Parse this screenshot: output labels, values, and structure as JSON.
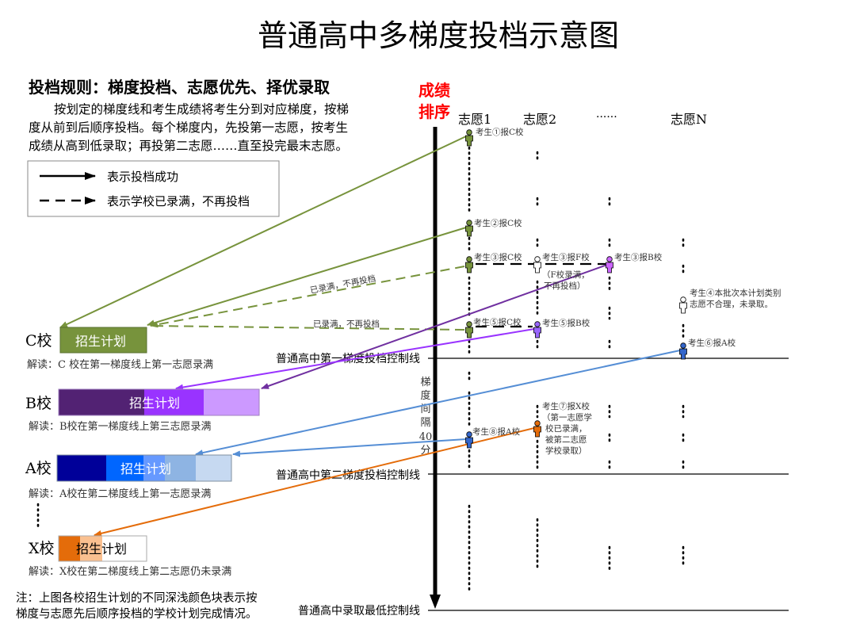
{
  "title": "普通高中多梯度投档示意图",
  "rules": {
    "heading": "投档规则：梯度投档、志愿优先、择优录取",
    "lines": [
      "按划定的梯度线和考生成绩将考生分到对应梯度，按梯",
      "度从前到后顺序投档。每个梯度内，先投第一志愿，按考生",
      "成绩从高到低录取；再投第二志愿……直至投完最末志愿。"
    ]
  },
  "legend": {
    "solid": "表示投档成功",
    "dashed": "表示学校已录满，不再投档"
  },
  "axis": {
    "label_line1": "成绩",
    "label_line2": "排序",
    "color": "#ff0000"
  },
  "columns": [
    "志愿1",
    "志愿2",
    "······",
    "志愿N"
  ],
  "control_lines": {
    "first": "普通高中第一梯度投档控制线",
    "second": "普通高中第二梯度投档控制线",
    "lowest": "普通高中录取最低控制线"
  },
  "gap_label": [
    "梯",
    "度",
    "间",
    "隔",
    "40",
    "分"
  ],
  "students": {
    "s1": "考生①报C校",
    "s2": "考生②报C校",
    "s3a": "考生③报C校",
    "s3b": "考生③报F校",
    "s3b_note": [
      "（F校录满，",
      "不再投档）"
    ],
    "s3c": "考生③报B校",
    "s4": [
      "考生④本批次本计划类别",
      "志愿不合理，未录取。"
    ],
    "s5a": "考生⑤报C校",
    "s5b": "考生⑤报B校",
    "s6": "考生⑥报A校",
    "s7": [
      "考生⑦报X校",
      "（第一志愿学",
      "校已录满，",
      "被第二志愿",
      "学校录取）"
    ],
    "s8": "考生⑧报A校"
  },
  "full_label": "已录满，不再投档",
  "schools": [
    {
      "name": "C校",
      "plan": "招生计划",
      "interpretation": "解读：C 校在第一梯度线上第一志愿录满",
      "colors": [
        "#77933c"
      ]
    },
    {
      "name": "B校",
      "plan": "招生计划",
      "interpretation": "解读：B校在第一梯度线上第三志愿录满",
      "colors": [
        "#522273",
        "#9933ff",
        "#cc99ff"
      ]
    },
    {
      "name": "A校",
      "plan": "招生计划",
      "interpretation": "解读：A校在第二梯度线上第一志愿录满",
      "colors": [
        "#000099",
        "#0066ff",
        "#6699ff",
        "#8eb4e3",
        "#c6d9f1"
      ]
    },
    {
      "name": "X校",
      "plan": "招生计划",
      "interpretation": "解读：X校在第二梯度线上第二志愿仍未录满",
      "colors": [
        "#e46c0a",
        "#fac090",
        "#ffffff"
      ]
    }
  ],
  "note": [
    "注：上图各校招生计划的不同深浅颜色块表示按",
    "梯度与志愿先后顺序投档的学校计划完成情况。"
  ],
  "colors": {
    "green": "#77933c",
    "dark_purple": "#7030a0",
    "purple": "#9933ff",
    "blue": "#558ed5",
    "orange": "#e46c0a"
  }
}
